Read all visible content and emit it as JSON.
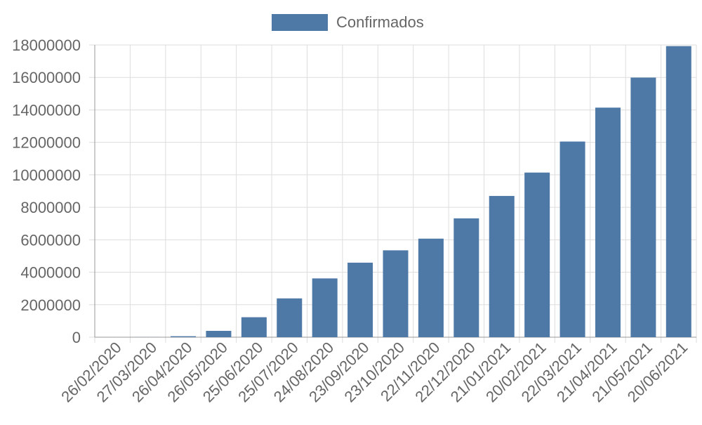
{
  "chart_data": {
    "type": "bar",
    "categories": [
      "26/02/2020",
      "27/03/2020",
      "26/04/2020",
      "26/05/2020",
      "25/06/2020",
      "25/07/2020",
      "24/08/2020",
      "23/09/2020",
      "23/10/2020",
      "22/11/2020",
      "22/12/2020",
      "21/01/2021",
      "20/02/2021",
      "22/03/2021",
      "21/04/2021",
      "21/05/2021",
      "20/06/2021"
    ],
    "series": [
      {
        "name": "Confirmados",
        "color": "#4e79a7",
        "values": [
          0,
          4000,
          60000,
          390000,
          1230000,
          2390000,
          3620000,
          4590000,
          5350000,
          6070000,
          7320000,
          8700000,
          10140000,
          12050000,
          14140000,
          15990000,
          17930000
        ]
      }
    ],
    "ylim": [
      0,
      18000000
    ],
    "yticks": [
      0,
      2000000,
      4000000,
      6000000,
      8000000,
      10000000,
      12000000,
      14000000,
      16000000,
      18000000
    ],
    "grid": true,
    "legend": "top-center"
  }
}
